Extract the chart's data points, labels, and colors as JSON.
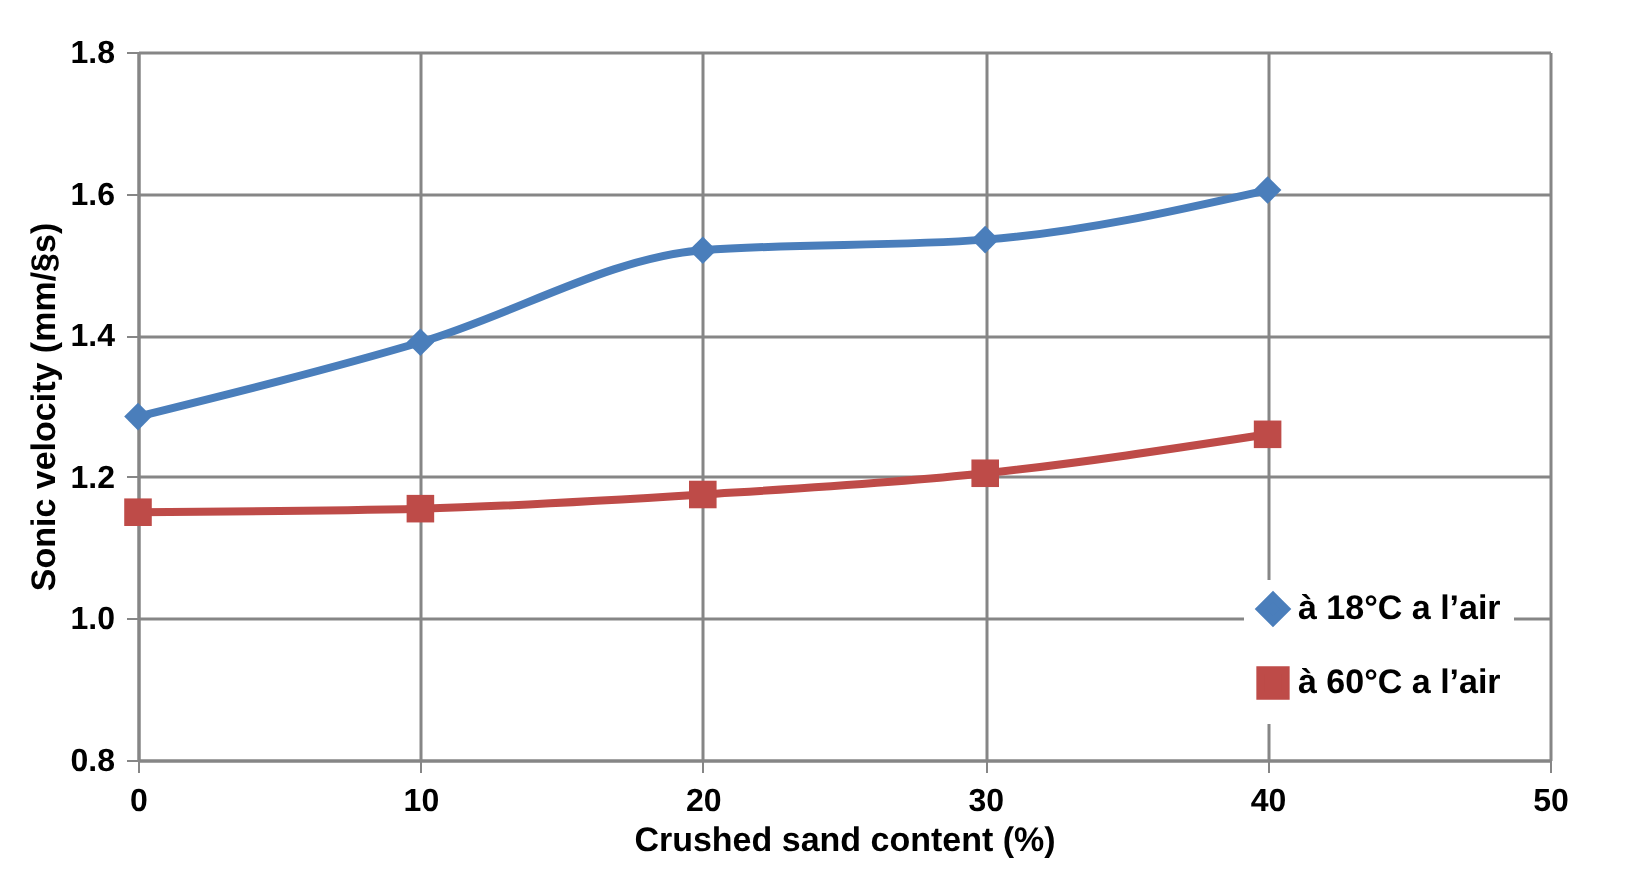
{
  "chart_data": {
    "type": "line",
    "xlabel": "Crushed sand content (%)",
    "ylabel": "Sonic velocity (mm/§s)",
    "x": [
      0,
      10,
      20,
      30,
      40
    ],
    "series": [
      {
        "name": "à 18°C a l’air",
        "color": "#4a7ebb",
        "marker": "diamond",
        "values": [
          1.285,
          1.39,
          1.52,
          1.535,
          1.605
        ]
      },
      {
        "name": "à 60°C a l’air",
        "color": "#be4b48",
        "marker": "square",
        "values": [
          1.15,
          1.155,
          1.175,
          1.205,
          1.26
        ]
      }
    ],
    "xlim": [
      0,
      50
    ],
    "xticks": [
      0,
      10,
      20,
      30,
      40,
      50
    ],
    "ylim": [
      0.8,
      1.8
    ],
    "yticks": [
      0.8,
      {
        "value": 1,
        "label": "1.0"
      },
      1.2,
      1.4,
      1.6,
      1.8
    ],
    "grid": true,
    "legend": "bottom right",
    "line_style": "solid"
  }
}
